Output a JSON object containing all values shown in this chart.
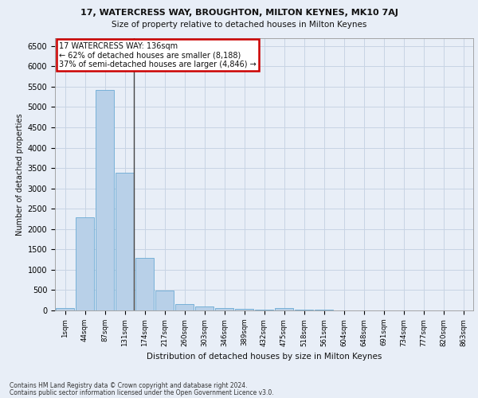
{
  "title1": "17, WATERCRESS WAY, BROUGHTON, MILTON KEYNES, MK10 7AJ",
  "title2": "Size of property relative to detached houses in Milton Keynes",
  "xlabel": "Distribution of detached houses by size in Milton Keynes",
  "ylabel": "Number of detached properties",
  "footnote1": "Contains HM Land Registry data © Crown copyright and database right 2024.",
  "footnote2": "Contains public sector information licensed under the Open Government Licence v3.0.",
  "annotation_line1": "17 WATERCRESS WAY: 136sqm",
  "annotation_line2": "← 62% of detached houses are smaller (8,188)",
  "annotation_line3": "37% of semi-detached houses are larger (4,846) →",
  "property_bin": 3,
  "bar_color": "#b8d0e8",
  "bar_edge_color": "#6aaad4",
  "annotation_box_color": "#cc0000",
  "background_color": "#e8eef7",
  "grid_color": "#c8d4e4",
  "categories": [
    "1sqm",
    "44sqm",
    "87sqm",
    "131sqm",
    "174sqm",
    "217sqm",
    "260sqm",
    "303sqm",
    "346sqm",
    "389sqm",
    "432sqm",
    "475sqm",
    "518sqm",
    "561sqm",
    "604sqm",
    "648sqm",
    "691sqm",
    "734sqm",
    "777sqm",
    "820sqm",
    "863sqm"
  ],
  "values": [
    60,
    2280,
    5420,
    3380,
    1290,
    480,
    165,
    100,
    60,
    30,
    25,
    55,
    15,
    10,
    5,
    5,
    3,
    2,
    2,
    1,
    1
  ],
  "ylim": [
    0,
    6700
  ],
  "yticks": [
    0,
    500,
    1000,
    1500,
    2000,
    2500,
    3000,
    3500,
    4000,
    4500,
    5000,
    5500,
    6000,
    6500
  ]
}
